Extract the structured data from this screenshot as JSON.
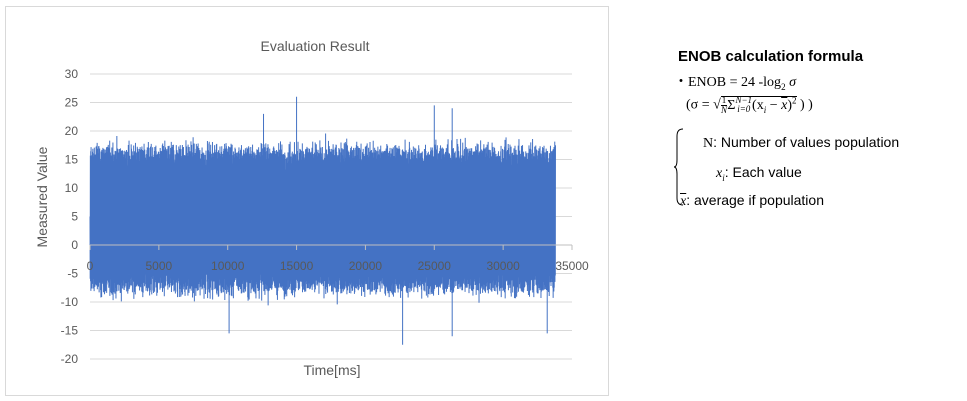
{
  "chart_data": {
    "type": "line",
    "title": "Evaluation Result",
    "xlabel": "Time[ms]",
    "ylabel": "Measured Value",
    "xlim": [
      0,
      35000
    ],
    "ylim": [
      -20,
      30
    ],
    "xticks": [
      0,
      5000,
      10000,
      15000,
      20000,
      25000,
      30000,
      35000
    ],
    "xtick_labels": [
      "0",
      "5000",
      "10000",
      "15000",
      "20000",
      "25000",
      "30000",
      "35000"
    ],
    "yticks": [
      -20,
      -15,
      -10,
      -5,
      0,
      5,
      10,
      15,
      20,
      25,
      30
    ],
    "ytick_labels": [
      "-20",
      "-15",
      "-10",
      "-5",
      "0",
      "5",
      "10",
      "15",
      "20",
      "25",
      "30"
    ],
    "grid": "horizontal",
    "series": [
      {
        "color": "#4472c4",
        "x_range": [
          0,
          33800
        ],
        "approx_mean": 5,
        "approx_envelope": [
          -10,
          19
        ],
        "peak_values": [
          {
            "x": 12600,
            "y": 23
          },
          {
            "x": 15000,
            "y": 26
          },
          {
            "x": 25000,
            "y": 24.5
          },
          {
            "x": 26300,
            "y": 24
          },
          {
            "x": 22700,
            "y": -17.5
          },
          {
            "x": 10100,
            "y": -15.5
          },
          {
            "x": 26300,
            "y": -16
          },
          {
            "x": 33200,
            "y": -15.5
          }
        ]
      }
    ]
  },
  "formula": {
    "title": "ENOB calculation formula",
    "bullet": "・",
    "enob_lhs": "ENOB = 24 -log",
    "enob_base": "2",
    "enob_var": "σ",
    "sigma_open": "(σ =",
    "frac_num": "1",
    "frac_den": "N",
    "sum_sym": "Σ",
    "sum_lower": "i=0",
    "sum_upper": "N−1",
    "sum_body": "(x",
    "sum_sub": "i",
    "sum_rest": "−",
    "sum_xbar": "x",
    "sum_close": ")",
    "sum_pow": "2",
    "sigma_close": ")  )",
    "n_sym": "N",
    "n_desc": ": Number of values population",
    "xi_sym": "x",
    "xi_sub": "i",
    "xi_desc": ":  Each value",
    "xbar_sym": "x",
    "xbar_desc": ":  average if population"
  }
}
